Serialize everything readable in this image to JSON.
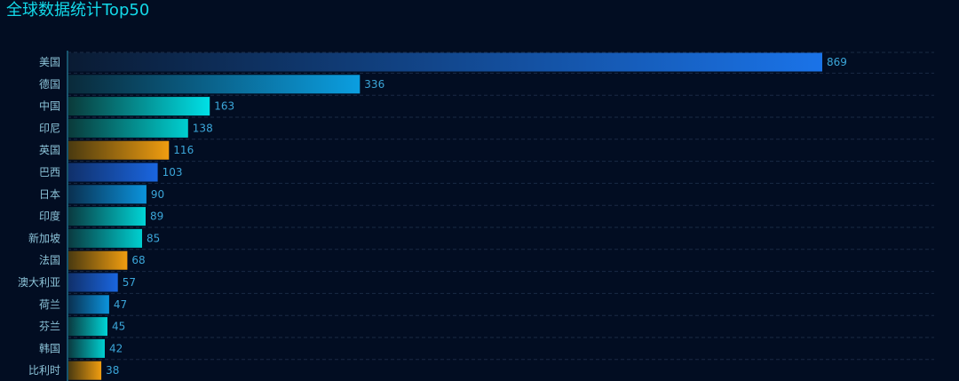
{
  "header": {
    "title": "全球数据统计Top50"
  },
  "colors": {
    "background": "#020d22",
    "title": "#13d8e8",
    "axis": "#1f6c86",
    "grid": "#1a2a44",
    "category_label": "#8cc3d8",
    "value_label": "#3ba6d9"
  },
  "chart_data": {
    "type": "bar",
    "orientation": "horizontal",
    "title": "全球数据统计Top50",
    "xlabel": "",
    "ylabel": "",
    "categories": [
      "美国",
      "德国",
      "中国",
      "印尼",
      "英国",
      "巴西",
      "日本",
      "印度",
      "新加坡",
      "法国",
      "澳大利亚",
      "荷兰",
      "芬兰",
      "韩国",
      "比利时"
    ],
    "values": [
      869,
      336,
      163,
      138,
      116,
      103,
      90,
      89,
      85,
      68,
      57,
      47,
      45,
      42,
      38
    ],
    "xlim": [
      0,
      869
    ],
    "grid": true,
    "data_labels": true,
    "bar_gradients": [
      [
        "#0a1b33",
        "#1a73e8"
      ],
      [
        "#0a2a3a",
        "#0b9ee0"
      ],
      [
        "#0a3a3a",
        "#00e0e6"
      ],
      [
        "#0a3a3a",
        "#00cfd0"
      ],
      [
        "#4a3a10",
        "#f09d10"
      ],
      [
        "#10306a",
        "#1a66e0"
      ],
      [
        "#0a3050",
        "#0b93dc"
      ],
      [
        "#0a3a40",
        "#00d4d6"
      ],
      [
        "#0a3a40",
        "#00cfd0"
      ],
      [
        "#4a3a10",
        "#f09d10"
      ],
      [
        "#10306a",
        "#1a66e0"
      ],
      [
        "#0a3050",
        "#0b93dc"
      ],
      [
        "#0a3a40",
        "#00d4d6"
      ],
      [
        "#0a3a40",
        "#00cfd0"
      ],
      [
        "#4a3a10",
        "#f09d10"
      ]
    ]
  }
}
